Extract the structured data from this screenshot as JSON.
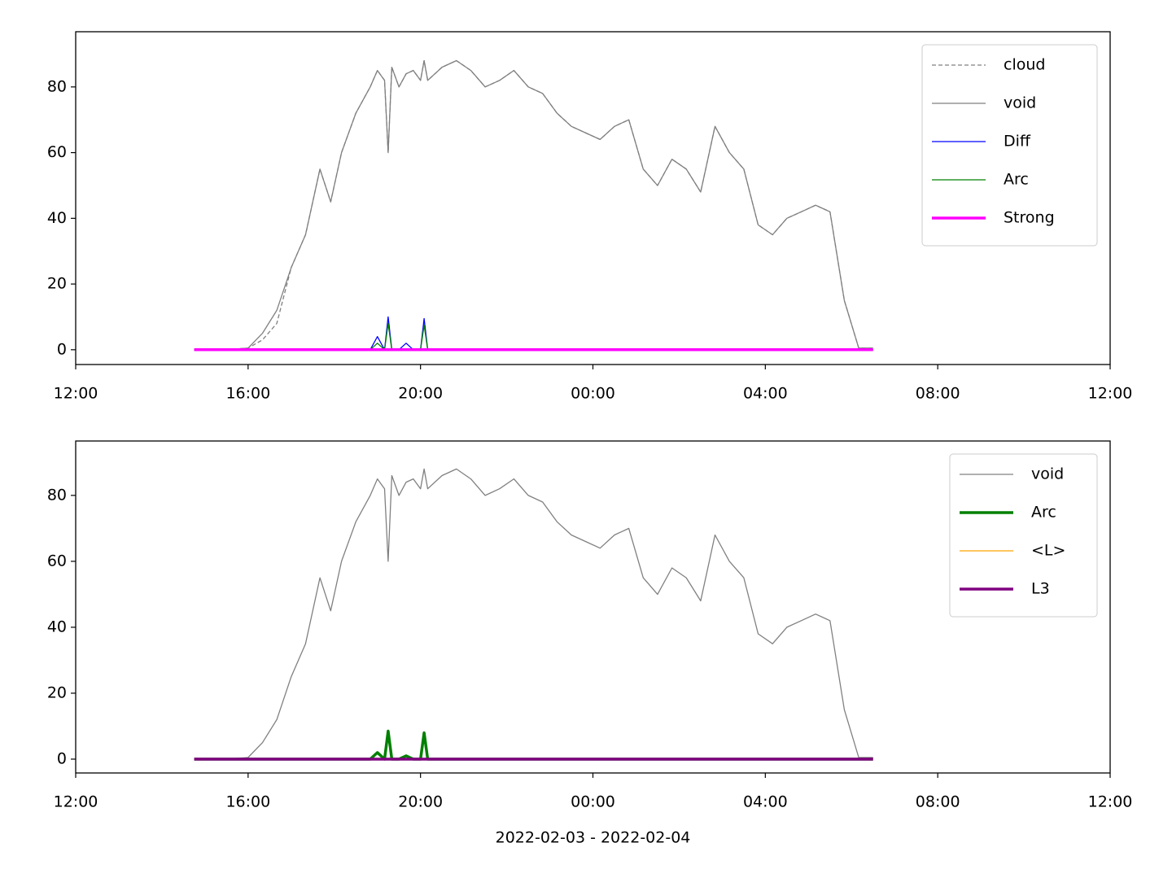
{
  "chart_data": [
    {
      "type": "line",
      "legend": "upper right",
      "x": [
        "2022-02-03T14:45",
        "2022-02-03T15:00",
        "2022-02-03T15:30",
        "2022-02-03T16:00",
        "2022-02-03T16:20",
        "2022-02-03T16:40",
        "2022-02-03T17:00",
        "2022-02-03T17:20",
        "2022-02-03T17:40",
        "2022-02-03T17:55",
        "2022-02-03T18:10",
        "2022-02-03T18:30",
        "2022-02-03T18:50",
        "2022-02-03T19:00",
        "2022-02-03T19:10",
        "2022-02-03T19:15",
        "2022-02-03T19:20",
        "2022-02-03T19:30",
        "2022-02-03T19:40",
        "2022-02-03T19:50",
        "2022-02-03T20:00",
        "2022-02-03T20:05",
        "2022-02-03T20:10",
        "2022-02-03T20:30",
        "2022-02-03T20:50",
        "2022-02-03T21:10",
        "2022-02-03T21:30",
        "2022-02-03T21:50",
        "2022-02-03T22:10",
        "2022-02-03T22:30",
        "2022-02-03T22:50",
        "2022-02-03T23:10",
        "2022-02-03T23:30",
        "2022-02-03T23:50",
        "2022-02-04T00:10",
        "2022-02-04T00:30",
        "2022-02-04T00:50",
        "2022-02-04T01:10",
        "2022-02-04T01:30",
        "2022-02-04T01:50",
        "2022-02-04T02:10",
        "2022-02-04T02:30",
        "2022-02-04T02:50",
        "2022-02-04T03:10",
        "2022-02-04T03:30",
        "2022-02-04T03:50",
        "2022-02-04T04:10",
        "2022-02-04T04:30",
        "2022-02-04T04:50",
        "2022-02-04T05:10",
        "2022-02-04T05:30",
        "2022-02-04T05:50",
        "2022-02-04T06:10",
        "2022-02-04T06:30"
      ],
      "series": [
        {
          "name": "cloud",
          "color": "#808080",
          "linewidth": 1.3,
          "style": "dashed",
          "values": [
            0,
            0,
            0,
            0.5,
            3,
            8,
            25,
            35,
            55,
            45,
            60,
            72,
            80,
            85,
            82,
            60,
            86,
            80,
            84,
            85,
            82,
            88,
            82,
            86,
            88,
            85,
            80,
            82,
            85,
            80,
            78,
            72,
            68,
            66,
            64,
            68,
            70,
            55,
            50,
            58,
            55,
            48,
            68,
            60,
            55,
            38,
            35,
            40,
            42,
            44,
            42,
            15,
            0.5,
            0.5
          ]
        },
        {
          "name": "void",
          "color": "#808080",
          "linewidth": 1.3,
          "style": "solid",
          "values": [
            0,
            0,
            0,
            0.5,
            5,
            12,
            25,
            35,
            55,
            45,
            60,
            72,
            80,
            85,
            82,
            60,
            86,
            80,
            84,
            85,
            82,
            88,
            82,
            86,
            88,
            85,
            80,
            82,
            85,
            80,
            78,
            72,
            68,
            66,
            64,
            68,
            70,
            55,
            50,
            58,
            55,
            48,
            68,
            60,
            55,
            38,
            35,
            40,
            42,
            44,
            42,
            15,
            0.5,
            0.5
          ]
        },
        {
          "name": "Diff",
          "color": "#0000ff",
          "linewidth": 1.3,
          "style": "solid",
          "values": [
            0,
            0,
            0,
            0,
            0,
            0,
            0,
            0,
            0,
            0,
            0,
            0,
            0,
            4,
            0,
            10,
            0,
            0,
            2,
            0,
            0,
            9.5,
            0,
            0,
            0,
            0,
            0,
            0,
            0,
            0,
            0,
            0,
            0,
            0,
            0,
            0,
            0,
            0,
            0,
            0,
            0,
            0,
            0,
            0,
            0,
            0,
            0,
            0,
            0,
            0,
            0,
            0,
            0,
            0
          ]
        },
        {
          "name": "Arc",
          "color": "#008000",
          "linewidth": 1.3,
          "style": "solid",
          "values": [
            0,
            0,
            0,
            0,
            0,
            0,
            0,
            0,
            0,
            0,
            0,
            0,
            0,
            2,
            0,
            8,
            0,
            0,
            0,
            0,
            0,
            7.5,
            0,
            0,
            0,
            0,
            0,
            0,
            0,
            0,
            0,
            0,
            0,
            0,
            0,
            0,
            0,
            0,
            0,
            0,
            0,
            0,
            0,
            0,
            0,
            0,
            0,
            0,
            0,
            0,
            0,
            0,
            0,
            0
          ]
        },
        {
          "name": "Strong",
          "color": "#ff00ff",
          "linewidth": 3.5,
          "style": "solid",
          "values": [
            0,
            0,
            0,
            0,
            0,
            0,
            0,
            0,
            0,
            0,
            0,
            0,
            0,
            0,
            0,
            0,
            0,
            0,
            0,
            0,
            0,
            0,
            0,
            0,
            0,
            0,
            0,
            0,
            0,
            0,
            0,
            0,
            0,
            0,
            0,
            0,
            0,
            0,
            0,
            0,
            0,
            0,
            0,
            0,
            0,
            0,
            0,
            0,
            0,
            0,
            0,
            0,
            0,
            0
          ]
        }
      ],
      "xlim": [
        "2022-02-03T12:00",
        "2022-02-04T12:00"
      ],
      "xticks": [
        {
          "value": "2022-02-03T12:00",
          "label": "12:00"
        },
        {
          "value": "2022-02-03T16:00",
          "label": "16:00"
        },
        {
          "value": "2022-02-03T20:00",
          "label": "20:00"
        },
        {
          "value": "2022-02-04T00:00",
          "label": "00:00"
        },
        {
          "value": "2022-02-04T04:00",
          "label": "04:00"
        },
        {
          "value": "2022-02-04T08:00",
          "label": "08:00"
        },
        {
          "value": "2022-02-04T12:00",
          "label": "12:00"
        }
      ],
      "ylim": [
        -4.5,
        96.8
      ],
      "yticks": [
        0,
        20,
        40,
        60,
        80
      ]
    },
    {
      "type": "line",
      "legend": "upper right",
      "xlabel": "2022-02-03 - 2022-02-04",
      "x": [
        "2022-02-03T14:45",
        "2022-02-03T15:00",
        "2022-02-03T15:30",
        "2022-02-03T16:00",
        "2022-02-03T16:20",
        "2022-02-03T16:40",
        "2022-02-03T17:00",
        "2022-02-03T17:20",
        "2022-02-03T17:40",
        "2022-02-03T17:55",
        "2022-02-03T18:10",
        "2022-02-03T18:30",
        "2022-02-03T18:50",
        "2022-02-03T19:00",
        "2022-02-03T19:10",
        "2022-02-03T19:15",
        "2022-02-03T19:20",
        "2022-02-03T19:30",
        "2022-02-03T19:40",
        "2022-02-03T19:50",
        "2022-02-03T20:00",
        "2022-02-03T20:05",
        "2022-02-03T20:10",
        "2022-02-03T20:30",
        "2022-02-03T20:50",
        "2022-02-03T21:10",
        "2022-02-03T21:30",
        "2022-02-03T21:50",
        "2022-02-03T22:10",
        "2022-02-03T22:30",
        "2022-02-03T22:50",
        "2022-02-03T23:10",
        "2022-02-03T23:30",
        "2022-02-03T23:50",
        "2022-02-04T00:10",
        "2022-02-04T00:30",
        "2022-02-04T00:50",
        "2022-02-04T01:10",
        "2022-02-04T01:30",
        "2022-02-04T01:50",
        "2022-02-04T02:10",
        "2022-02-04T02:30",
        "2022-02-04T02:50",
        "2022-02-04T03:10",
        "2022-02-04T03:30",
        "2022-02-04T03:50",
        "2022-02-04T04:10",
        "2022-02-04T04:30",
        "2022-02-04T04:50",
        "2022-02-04T05:10",
        "2022-02-04T05:30",
        "2022-02-04T05:50",
        "2022-02-04T06:10",
        "2022-02-04T06:30"
      ],
      "series": [
        {
          "name": "void",
          "color": "#808080",
          "linewidth": 1.3,
          "style": "solid",
          "values": [
            0,
            0,
            0,
            0.5,
            5,
            12,
            25,
            35,
            55,
            45,
            60,
            72,
            80,
            85,
            82,
            60,
            86,
            80,
            84,
            85,
            82,
            88,
            82,
            86,
            88,
            85,
            80,
            82,
            85,
            80,
            78,
            72,
            68,
            66,
            64,
            68,
            70,
            55,
            50,
            58,
            55,
            48,
            68,
            60,
            55,
            38,
            35,
            40,
            42,
            44,
            42,
            15,
            0.5,
            0.5
          ]
        },
        {
          "name": "Arc",
          "color": "#008000",
          "linewidth": 3.5,
          "style": "solid",
          "values": [
            0,
            0,
            0,
            0,
            0,
            0,
            0,
            0,
            0,
            0,
            0,
            0,
            0,
            2,
            0,
            8.5,
            0,
            0,
            1,
            0,
            0,
            8,
            0,
            0,
            0,
            0,
            0,
            0,
            0,
            0,
            0,
            0,
            0,
            0,
            0,
            0,
            0,
            0,
            0,
            0,
            0,
            0,
            0,
            0,
            0,
            0,
            0,
            0,
            0,
            0,
            0,
            0,
            0,
            0
          ]
        },
        {
          "name": "<L>",
          "color": "#ffa500",
          "linewidth": 1.3,
          "style": "solid",
          "values": [
            0,
            0,
            0,
            0,
            0,
            0,
            0,
            0,
            0,
            0,
            0,
            0,
            0,
            0,
            0,
            0,
            0,
            0,
            0,
            0,
            0,
            0,
            0,
            0,
            0,
            0,
            0,
            0,
            0,
            0,
            0,
            0,
            0,
            0,
            0,
            0,
            0,
            0,
            0,
            0,
            0,
            0,
            0,
            0,
            0,
            0,
            0,
            0,
            0,
            0,
            0,
            0,
            0,
            0
          ]
        },
        {
          "name": "L3",
          "color": "#800080",
          "linewidth": 3.5,
          "style": "solid",
          "values": [
            0,
            0,
            0,
            0,
            0,
            0,
            0,
            0,
            0,
            0,
            0,
            0,
            0,
            0,
            0,
            0,
            0,
            0,
            0,
            0,
            0,
            0,
            0,
            0,
            0,
            0,
            0,
            0,
            0,
            0,
            0,
            0,
            0,
            0,
            0,
            0,
            0,
            0,
            0,
            0,
            0,
            0,
            0,
            0,
            0,
            0,
            0,
            0,
            0,
            0,
            0,
            0,
            0,
            0
          ]
        }
      ],
      "xlim": [
        "2022-02-03T12:00",
        "2022-02-04T12:00"
      ],
      "xticks": [
        {
          "value": "2022-02-03T12:00",
          "label": "12:00"
        },
        {
          "value": "2022-02-03T16:00",
          "label": "16:00"
        },
        {
          "value": "2022-02-03T20:00",
          "label": "20:00"
        },
        {
          "value": "2022-02-04T00:00",
          "label": "00:00"
        },
        {
          "value": "2022-02-04T04:00",
          "label": "04:00"
        },
        {
          "value": "2022-02-04T08:00",
          "label": "08:00"
        },
        {
          "value": "2022-02-04T12:00",
          "label": "12:00"
        }
      ],
      "ylim": [
        -4.2,
        96.5
      ],
      "yticks": [
        0,
        20,
        40,
        60,
        80
      ]
    }
  ]
}
